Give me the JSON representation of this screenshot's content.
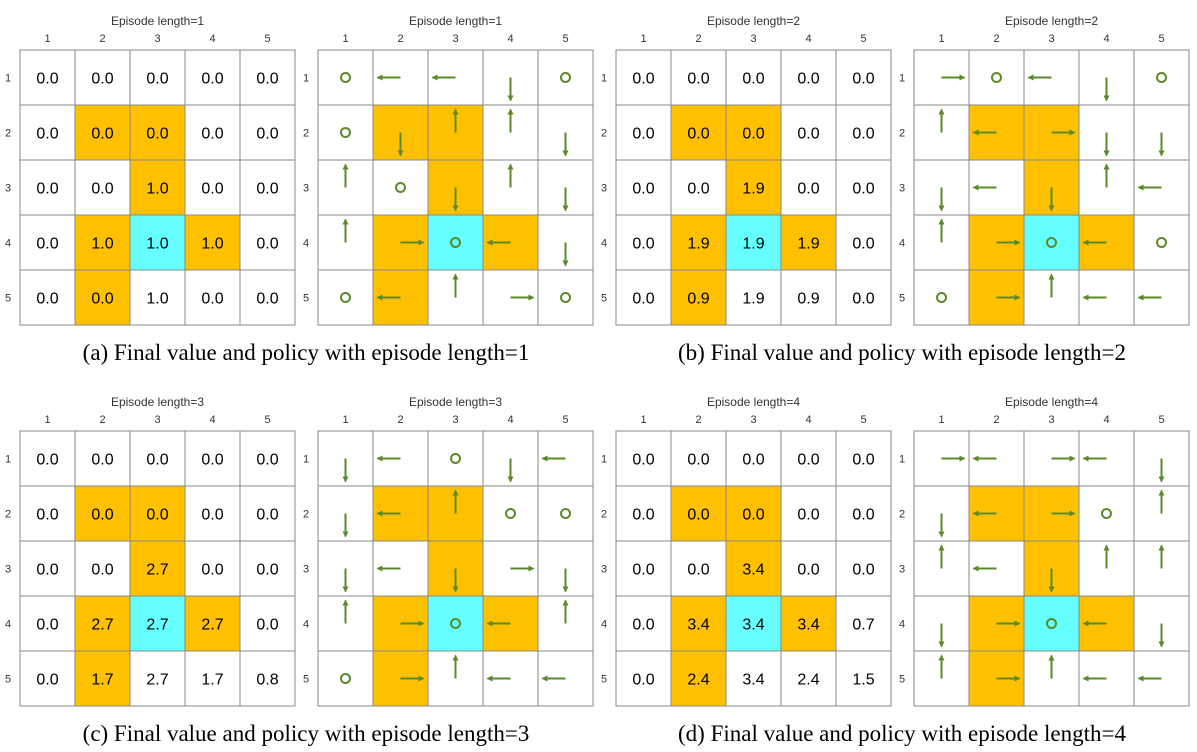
{
  "col_labels": [
    "1",
    "2",
    "3",
    "4",
    "5"
  ],
  "row_labels": [
    "1",
    "2",
    "3",
    "4",
    "5"
  ],
  "colors": {
    "forbidden": "#FFC000",
    "target": "#66FFFF",
    "arrow": "#5B8A28",
    "grid": "#888888"
  },
  "cell_types": [
    [
      "",
      "",
      "",
      "",
      ""
    ],
    [
      "",
      "forbidden",
      "forbidden",
      "",
      ""
    ],
    [
      "",
      "",
      "forbidden",
      "",
      ""
    ],
    [
      "",
      "forbidden",
      "target",
      "forbidden",
      ""
    ],
    [
      "",
      "forbidden",
      "",
      "",
      ""
    ]
  ],
  "action_legend": {
    "u": "arrow-up",
    "d": "arrow-down",
    "l": "arrow-left",
    "r": "arrow-right",
    "o": "stay-circle"
  },
  "panels": [
    {
      "caption": "(a) Final value and policy with episode length=1",
      "value_grid": {
        "title": "Episode length=1",
        "values": [
          [
            "0.0",
            "0.0",
            "0.0",
            "0.0",
            "0.0"
          ],
          [
            "0.0",
            "0.0",
            "0.0",
            "0.0",
            "0.0"
          ],
          [
            "0.0",
            "0.0",
            "1.0",
            "0.0",
            "0.0"
          ],
          [
            "0.0",
            "1.0",
            "1.0",
            "1.0",
            "0.0"
          ],
          [
            "0.0",
            "0.0",
            "1.0",
            "0.0",
            "0.0"
          ]
        ]
      },
      "policy_grid": {
        "title": "Episode length=1",
        "actions": [
          [
            "o",
            "l",
            "l",
            "d",
            "o"
          ],
          [
            "o",
            "d",
            "u",
            "u",
            "d"
          ],
          [
            "u",
            "o",
            "d",
            "u",
            "d"
          ],
          [
            "u",
            "r",
            "o",
            "l",
            "d"
          ],
          [
            "o",
            "l",
            "u",
            "r",
            "o"
          ]
        ]
      }
    },
    {
      "caption": "(b) Final value and policy with episode length=2",
      "value_grid": {
        "title": "Episode length=2",
        "values": [
          [
            "0.0",
            "0.0",
            "0.0",
            "0.0",
            "0.0"
          ],
          [
            "0.0",
            "0.0",
            "0.0",
            "0.0",
            "0.0"
          ],
          [
            "0.0",
            "0.0",
            "1.9",
            "0.0",
            "0.0"
          ],
          [
            "0.0",
            "1.9",
            "1.9",
            "1.9",
            "0.0"
          ],
          [
            "0.0",
            "0.9",
            "1.9",
            "0.9",
            "0.0"
          ]
        ]
      },
      "policy_grid": {
        "title": "Episode length=2",
        "actions": [
          [
            "r",
            "o",
            "l",
            "d",
            "o"
          ],
          [
            "u",
            "l",
            "r",
            "d",
            "d"
          ],
          [
            "d",
            "l",
            "d",
            "u",
            "l"
          ],
          [
            "u",
            "r",
            "o",
            "l",
            "o"
          ],
          [
            "o",
            "r",
            "u",
            "l",
            "l"
          ]
        ]
      }
    },
    {
      "caption": "(c) Final value and policy with episode length=3",
      "value_grid": {
        "title": "Episode length=3",
        "values": [
          [
            "0.0",
            "0.0",
            "0.0",
            "0.0",
            "0.0"
          ],
          [
            "0.0",
            "0.0",
            "0.0",
            "0.0",
            "0.0"
          ],
          [
            "0.0",
            "0.0",
            "2.7",
            "0.0",
            "0.0"
          ],
          [
            "0.0",
            "2.7",
            "2.7",
            "2.7",
            "0.0"
          ],
          [
            "0.0",
            "1.7",
            "2.7",
            "1.7",
            "0.8"
          ]
        ]
      },
      "policy_grid": {
        "title": "Episode length=3",
        "actions": [
          [
            "d",
            "l",
            "o",
            "d",
            "l"
          ],
          [
            "d",
            "l",
            "u",
            "o",
            "o"
          ],
          [
            "d",
            "l",
            "d",
            "r",
            "d"
          ],
          [
            "u",
            "r",
            "o",
            "l",
            "u"
          ],
          [
            "o",
            "r",
            "u",
            "l",
            "l"
          ]
        ]
      }
    },
    {
      "caption": "(d) Final value and policy with episode length=4",
      "value_grid": {
        "title": "Episode length=4",
        "values": [
          [
            "0.0",
            "0.0",
            "0.0",
            "0.0",
            "0.0"
          ],
          [
            "0.0",
            "0.0",
            "0.0",
            "0.0",
            "0.0"
          ],
          [
            "0.0",
            "0.0",
            "3.4",
            "0.0",
            "0.0"
          ],
          [
            "0.0",
            "3.4",
            "3.4",
            "3.4",
            "0.7"
          ],
          [
            "0.0",
            "2.4",
            "3.4",
            "2.4",
            "1.5"
          ]
        ]
      },
      "policy_grid": {
        "title": "Episode length=4",
        "actions": [
          [
            "r",
            "l",
            "r",
            "l",
            "d"
          ],
          [
            "d",
            "l",
            "r",
            "o",
            "u"
          ],
          [
            "u",
            "l",
            "d",
            "u",
            "u"
          ],
          [
            "d",
            "r",
            "o",
            "l",
            "d"
          ],
          [
            "u",
            "r",
            "u",
            "l",
            "l"
          ]
        ]
      }
    }
  ]
}
